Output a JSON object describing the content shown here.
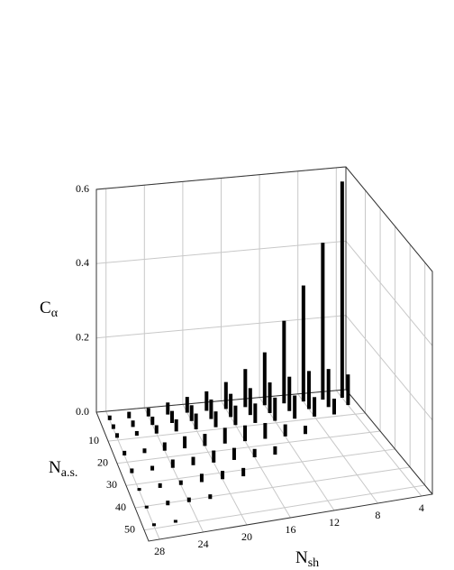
{
  "chart_data": {
    "type": "bar3d",
    "xlabel": {
      "text": "N",
      "sub": "sh"
    },
    "ylabel": {
      "text": "N",
      "sub": "a.s."
    },
    "zlabel": {
      "text": "C",
      "sub": "α"
    },
    "xlim": [
      29,
      3
    ],
    "xticks": [
      28,
      24,
      20,
      16,
      12,
      8,
      4
    ],
    "ylim": [
      -3,
      55
    ],
    "yticks": [
      10,
      20,
      30,
      40,
      50
    ],
    "zlim": [
      0,
      0.6
    ],
    "zticks": [
      {
        "value": 0,
        "label": "0.0"
      },
      0.2,
      0.4,
      0.6
    ],
    "grid": true,
    "color": "#000000",
    "bars": {
      "x": [
        4,
        6,
        8,
        10,
        12,
        14,
        16,
        18,
        20,
        22,
        24,
        26,
        28,
        4,
        6,
        8,
        10,
        12,
        14,
        16,
        18,
        20,
        22,
        24,
        26,
        28,
        6,
        8,
        10,
        12,
        14,
        16,
        18,
        20,
        22,
        24,
        26,
        28,
        10,
        12,
        14,
        16,
        18,
        20,
        22,
        24,
        26,
        28,
        14,
        16,
        18,
        20,
        22,
        24,
        26,
        28,
        18,
        20,
        22,
        24,
        26,
        28,
        22,
        24,
        26,
        28,
        26,
        28
      ],
      "y": [
        1,
        1,
        1,
        1,
        1,
        1,
        1,
        1,
        1,
        1,
        1,
        1,
        1,
        5,
        5,
        5,
        5,
        5,
        5,
        5,
        5,
        5,
        5,
        5,
        5,
        5,
        9,
        9,
        9,
        9,
        9,
        9,
        9,
        9,
        9,
        9,
        9,
        9,
        17,
        17,
        17,
        17,
        17,
        17,
        17,
        17,
        17,
        17,
        25,
        25,
        25,
        25,
        25,
        25,
        25,
        25,
        33,
        33,
        33,
        33,
        33,
        33,
        41,
        41,
        41,
        41,
        49,
        49
      ],
      "values": [
        0.58,
        0.42,
        0.31,
        0.22,
        0.14,
        0.1,
        0.07,
        0.05,
        0.04,
        0.03,
        0.02,
        0.015,
        0.01,
        0.08,
        0.1,
        0.1,
        0.09,
        0.08,
        0.07,
        0.06,
        0.05,
        0.04,
        0.03,
        0.02,
        0.015,
        0.01,
        0.04,
        0.05,
        0.06,
        0.06,
        0.05,
        0.05,
        0.04,
        0.04,
        0.03,
        0.02,
        0.01,
        0.01,
        0.02,
        0.03,
        0.04,
        0.04,
        0.04,
        0.03,
        0.03,
        0.02,
        0.01,
        0.01,
        0.02,
        0.02,
        0.03,
        0.03,
        0.02,
        0.02,
        0.01,
        0.01,
        0.02,
        0.02,
        0.02,
        0.01,
        0.01,
        0.005,
        0.01,
        0.01,
        0.01,
        0.005,
        0.005,
        0.005
      ]
    }
  }
}
